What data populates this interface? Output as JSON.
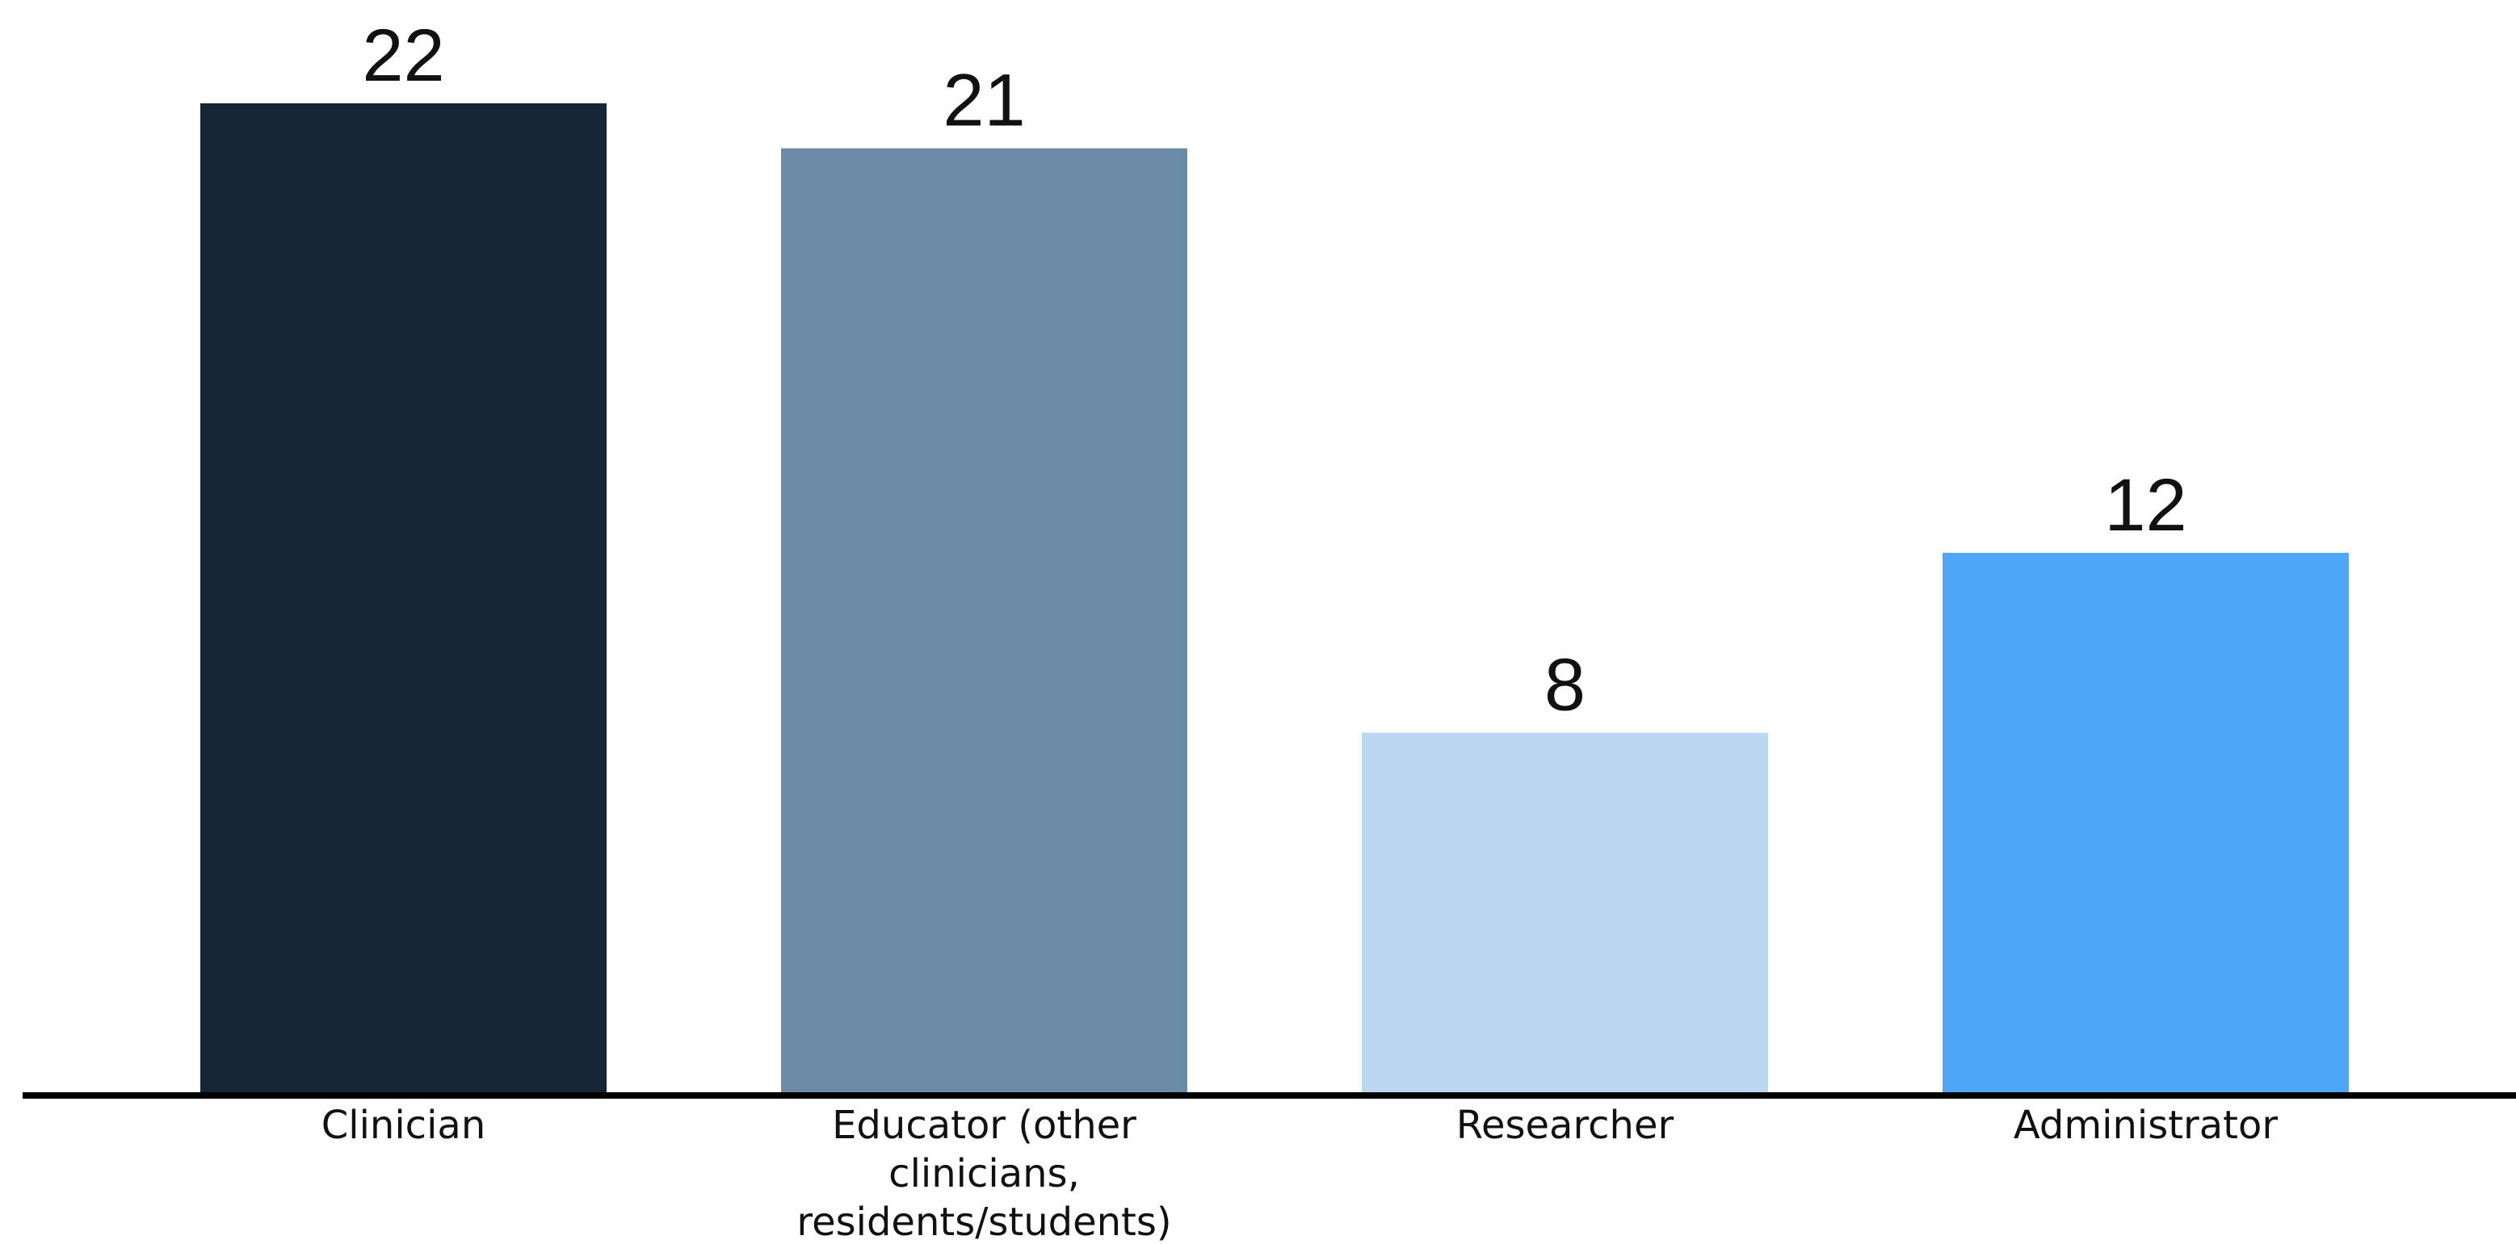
{
  "chart_data": {
    "type": "bar",
    "title": "",
    "xlabel": "",
    "ylabel": "",
    "categories": [
      [
        "Clinician"
      ],
      [
        "Educator (other",
        "clinicians,",
        "residents/students)"
      ],
      [
        "Researcher"
      ],
      [
        "Administrator"
      ]
    ],
    "values": [
      22,
      21,
      8,
      12
    ],
    "colors": [
      "#172636",
      "#6b8aa8",
      "#bcd7f0",
      "#4da6f8"
    ],
    "ylim": [
      0,
      22
    ],
    "grid": false,
    "legend": "none",
    "show_value_labels": true
  }
}
